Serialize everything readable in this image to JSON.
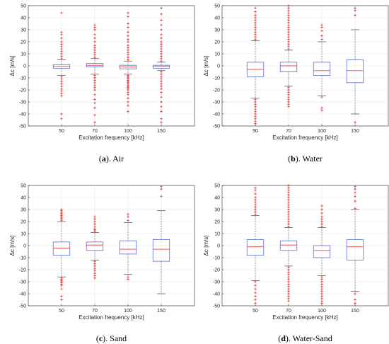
{
  "colors": {
    "box": "#5b6fd4",
    "median": "#e8404a",
    "outlier": "#e0191f",
    "whisker": "#555555",
    "grid": "#e6e6e6",
    "axis": "#262626"
  },
  "chart_data": [
    {
      "type": "box",
      "panel_label": "a",
      "caption_suffix": ". Air",
      "xlabel": "Excitation frequency [kHz]",
      "ylabel": "Δc [m/s]",
      "ylim": [
        -50,
        50
      ],
      "yticks": [
        -50,
        -40,
        -30,
        -20,
        -10,
        0,
        10,
        20,
        30,
        40,
        50
      ],
      "grid": true,
      "categories": [
        "50",
        "70",
        "100",
        "150"
      ],
      "boxes": [
        {
          "q1": -2,
          "median": -0.5,
          "q3": 1,
          "whisker_low": -8,
          "whisker_high": 5,
          "outliers_high": [
            6,
            8,
            10,
            12,
            14,
            16,
            18,
            20,
            23,
            26,
            28,
            44
          ],
          "outliers_low": [
            -9,
            -11,
            -13,
            -15,
            -17,
            -19,
            -21,
            -23,
            -25,
            -40,
            -44
          ]
        },
        {
          "q1": -1,
          "median": 0.5,
          "q3": 2,
          "whisker_low": -7,
          "whisker_high": 6,
          "outliers_high": [
            7,
            9,
            11,
            13,
            15,
            17,
            20,
            23,
            26,
            30,
            32,
            34
          ],
          "outliers_low": [
            -8,
            -10,
            -12,
            -14,
            -16,
            -18,
            -20,
            -24,
            -28,
            -31,
            -35,
            -41,
            -47
          ]
        },
        {
          "q1": -2.5,
          "median": -1,
          "q3": 0.5,
          "whisker_low": -7,
          "whisker_high": 4,
          "outliers_high": [
            5,
            7,
            9,
            11,
            13,
            15,
            17,
            20,
            22,
            25,
            28,
            32,
            35,
            41,
            44
          ],
          "outliers_low": [
            -8,
            -9,
            -10,
            -11,
            -12,
            -13,
            -14,
            -15,
            -16,
            -17,
            -18,
            -19,
            -20,
            -22,
            -24,
            -27,
            -30,
            -33,
            -38
          ]
        },
        {
          "q1": -2,
          "median": -0.5,
          "q3": 0.5,
          "whisker_low": -4,
          "whisker_high": 3,
          "outliers_high": [
            4,
            6,
            8,
            10,
            12,
            14,
            16,
            18,
            20,
            23,
            26,
            30,
            34,
            38,
            43,
            48
          ],
          "outliers_low": [
            -5,
            -7,
            -9,
            -11,
            -13,
            -15,
            -17,
            -19,
            -22,
            -26,
            -30,
            -34,
            -38,
            -44,
            -47
          ]
        }
      ]
    },
    {
      "type": "box",
      "panel_label": "b",
      "caption_suffix": ". Water",
      "xlabel": "Excitation frequency [kHz]",
      "ylabel": "Δc [m/s]",
      "ylim": [
        -50,
        50
      ],
      "yticks": [
        -50,
        -40,
        -30,
        -20,
        -10,
        0,
        10,
        20,
        30,
        40,
        50
      ],
      "grid": true,
      "categories": [
        "50",
        "70",
        "100",
        "150"
      ],
      "boxes": [
        {
          "q1": -9,
          "median": -3,
          "q3": 3,
          "whisker_low": -27,
          "whisker_high": 21,
          "outliers_high": [
            22,
            24,
            26,
            28,
            30,
            32,
            34,
            36,
            38,
            40,
            42,
            45,
            48
          ],
          "outliers_low": [
            -28,
            -30,
            -32,
            -34,
            -36,
            -38,
            -40,
            -42,
            -44,
            -46,
            -48
          ]
        },
        {
          "q1": -5,
          "median": 0,
          "q3": 3,
          "whisker_low": -17,
          "whisker_high": 13,
          "outliers_high": [
            14,
            16,
            18,
            20,
            22,
            24,
            26,
            28,
            30,
            32,
            34,
            36,
            38,
            40,
            42,
            44,
            46,
            48,
            50
          ],
          "outliers_low": [
            -18,
            -20,
            -22,
            -24,
            -26,
            -28,
            -30,
            -32,
            -34
          ]
        },
        {
          "q1": -8,
          "median": -4,
          "q3": 3,
          "whisker_low": -25,
          "whisker_high": 20,
          "outliers_high": [
            22,
            25,
            29,
            32,
            34
          ],
          "outliers_low": [
            -26,
            -35,
            -37
          ]
        },
        {
          "q1": -14,
          "median": -4,
          "q3": 5,
          "whisker_low": -40,
          "whisker_high": 30,
          "outliers_high": [
            42,
            46,
            48
          ],
          "outliers_low": [
            -47
          ]
        }
      ]
    },
    {
      "type": "box",
      "panel_label": "c",
      "caption_suffix": ". Sand",
      "xlabel": "Excitation frequency [kHz]",
      "ylabel": "Δc [m/s]",
      "ylim": [
        -50,
        50
      ],
      "yticks": [
        -50,
        -40,
        -30,
        -20,
        -10,
        0,
        10,
        20,
        30,
        40,
        50
      ],
      "grid": true,
      "categories": [
        "50",
        "70",
        "100",
        "150"
      ],
      "boxes": [
        {
          "q1": -8,
          "median": -2,
          "q3": 3,
          "whisker_low": -26,
          "whisker_high": 20,
          "outliers_high": [
            21,
            22,
            23,
            24,
            25,
            26,
            27,
            28,
            29,
            30
          ],
          "outliers_low": [
            -27,
            -28,
            -29,
            -30,
            -31,
            -32,
            -33,
            -36,
            -42,
            -45
          ]
        },
        {
          "q1": -4,
          "median": 0.5,
          "q3": 3,
          "whisker_low": -12,
          "whisker_high": 11,
          "outliers_high": [
            12,
            13,
            14,
            16,
            18,
            20,
            22,
            24
          ],
          "outliers_low": [
            -13,
            -15,
            -17,
            -19,
            -21,
            -23,
            -25,
            -27
          ]
        },
        {
          "q1": -7,
          "median": -3,
          "q3": 4,
          "whisker_low": -24,
          "whisker_high": 19,
          "outliers_high": [
            21,
            24,
            26
          ],
          "outliers_low": [
            -26,
            -28
          ]
        },
        {
          "q1": -13,
          "median": -3,
          "q3": 5,
          "whisker_low": -40,
          "whisker_high": 29,
          "outliers_high": [
            41,
            47,
            49
          ],
          "outliers_low": []
        }
      ]
    },
    {
      "type": "box",
      "panel_label": "d",
      "caption_suffix": ". Water-Sand",
      "xlabel": "Excitation frequency [kHz]",
      "ylabel": "Δc [m/s]",
      "ylim": [
        -50,
        50
      ],
      "yticks": [
        -50,
        -40,
        -30,
        -20,
        -10,
        0,
        10,
        20,
        30,
        40,
        50
      ],
      "grid": true,
      "categories": [
        "50",
        "70",
        "100",
        "150"
      ],
      "boxes": [
        {
          "q1": -8,
          "median": -1,
          "q3": 5,
          "whisker_low": -29,
          "whisker_high": 25,
          "outliers_high": [
            26,
            28,
            30,
            32,
            34,
            36,
            38,
            40,
            43,
            46,
            48
          ],
          "outliers_low": [
            -30,
            -33,
            -36,
            -39,
            -42,
            -45,
            -48
          ]
        },
        {
          "q1": -4,
          "median": 0.5,
          "q3": 4,
          "whisker_low": -17,
          "whisker_high": 15,
          "outliers_high": [
            16,
            18,
            20,
            22,
            24,
            26,
            28,
            30,
            32,
            34,
            36,
            38,
            40,
            42,
            44,
            46,
            48,
            50
          ],
          "outliers_low": [
            -18,
            -20,
            -22,
            -24,
            -26,
            -28,
            -30,
            -32,
            -34,
            -36,
            -38,
            -40,
            -42,
            -44,
            -46
          ]
        },
        {
          "q1": -10,
          "median": -4,
          "q3": 0,
          "whisker_low": -25,
          "whisker_high": 15,
          "outliers_high": [
            16,
            18,
            20,
            22,
            24,
            27,
            30,
            33
          ],
          "outliers_low": [
            -26,
            -28,
            -30,
            -32,
            -34,
            -36,
            -38,
            -40,
            -42,
            -44,
            -46,
            -48
          ]
        },
        {
          "q1": -12,
          "median": -1,
          "q3": 5,
          "whisker_low": -38,
          "whisker_high": 30,
          "outliers_high": [
            31,
            37,
            41,
            44,
            47,
            49
          ],
          "outliers_low": [
            -40,
            -45,
            -48
          ]
        }
      ]
    }
  ]
}
